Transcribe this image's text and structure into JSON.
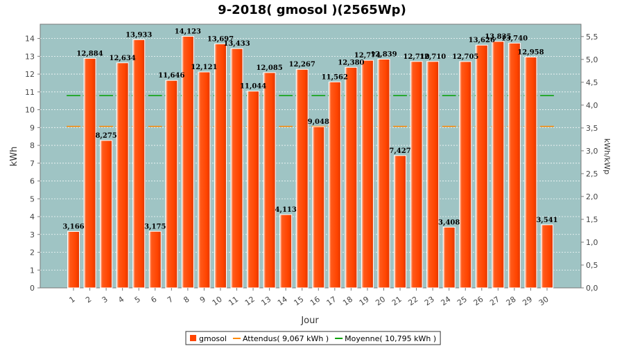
{
  "chart_data": {
    "type": "bar",
    "title": "9-2018( gmosol )(2565Wp)",
    "xlabel": "Jour",
    "ylabel": "kWh",
    "ylabel_right": "kWh/kWp",
    "ylim": [
      0,
      14.8
    ],
    "yticks": [
      "0",
      "1",
      "2",
      "3",
      "4",
      "5",
      "6",
      "7",
      "8",
      "9",
      "10",
      "11",
      "12",
      "13",
      "14"
    ],
    "y2lim": [
      0,
      5.77
    ],
    "y2ticks": [
      "0,0",
      "0,5",
      "1,0",
      "1,5",
      "2,0",
      "2,5",
      "3,0",
      "3,5",
      "4,0",
      "4,5",
      "5,0",
      "5,5"
    ],
    "grid": true,
    "legend_position": "bottom",
    "categories": [
      "1",
      "2",
      "3",
      "4",
      "5",
      "6",
      "7",
      "8",
      "9",
      "10",
      "11",
      "12",
      "13",
      "14",
      "15",
      "16",
      "17",
      "18",
      "19",
      "20",
      "21",
      "22",
      "23",
      "24",
      "25",
      "26",
      "27",
      "28",
      "29",
      "30"
    ],
    "series": [
      {
        "name": "gmosol",
        "color": "#ff4400",
        "values": [
          3.166,
          12.884,
          8.275,
          12.634,
          13.933,
          3.175,
          11.646,
          14.123,
          12.121,
          13.697,
          13.433,
          11.044,
          12.085,
          4.113,
          12.267,
          9.048,
          11.562,
          12.38,
          12.774,
          12.839,
          7.427,
          12.71,
          12.71,
          3.408,
          12.705,
          13.626,
          13.835,
          13.74,
          12.958,
          3.541
        ],
        "labels": [
          "3,166",
          "12,884",
          "8,275",
          "12,634",
          "13,933",
          "3,175",
          "11,646",
          "14,123",
          "12,121",
          "13,697",
          "13,433",
          "11,044",
          "12,085",
          "4,113",
          "12,267",
          "9,048",
          "11,562",
          "12,380",
          "12,774",
          "12,839",
          "7,427",
          "12,710",
          "12,710",
          "3,408",
          "12,705",
          "13,626",
          "13,835",
          "13,740",
          "12,958",
          "3,541"
        ]
      }
    ],
    "reference_lines": [
      {
        "name": "Attendus",
        "value": 9.067,
        "color": "#ff8800"
      },
      {
        "name": "Moyenne",
        "value": 10.795,
        "color": "#00a000"
      }
    ],
    "legend": [
      {
        "label": "gmosol",
        "color": "#ff4400",
        "kind": "box"
      },
      {
        "label": "Attendus( 9,067 kWh )",
        "color": "#ff8800",
        "kind": "line"
      },
      {
        "label": "Moyenne( 10,795 kWh )",
        "color": "#00a000",
        "kind": "line"
      }
    ],
    "plot_background": "#9fc4c4"
  }
}
